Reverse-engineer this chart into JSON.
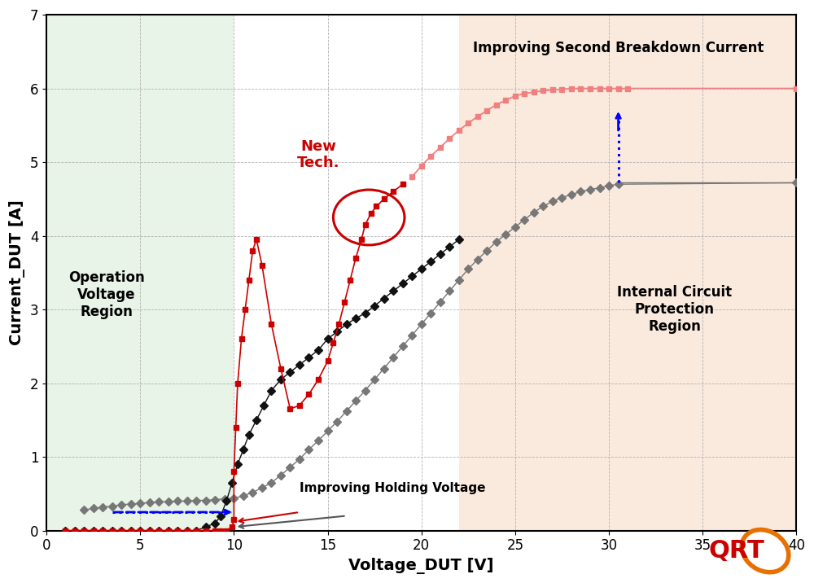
{
  "title": "",
  "xlabel": "Voltage_DUT [V]",
  "ylabel": "Current_DUT [A]",
  "xlim": [
    0,
    40
  ],
  "ylim": [
    0,
    7
  ],
  "xticks": [
    0,
    5,
    10,
    15,
    20,
    25,
    30,
    35,
    40
  ],
  "yticks": [
    0,
    1,
    2,
    3,
    4,
    5,
    6,
    7
  ],
  "bg_color": "#ffffff",
  "green_region": [
    0,
    10
  ],
  "orange_region": [
    22,
    40
  ],
  "green_color": "#e8f4e8",
  "orange_color": "#faeade",
  "red_color": "#cc0000",
  "light_red_color": "#f08080",
  "black_color": "#111111",
  "gray_color": "#777777",
  "dpi": 100,
  "figsize": [
    10.0,
    7.16
  ],
  "red_x": [
    1,
    1.5,
    2,
    2.5,
    3,
    3.5,
    4,
    4.5,
    5,
    5.5,
    6,
    6.5,
    7,
    7.5,
    8,
    8.5,
    9,
    9.3,
    9.6,
    9.9,
    10.0,
    10.0,
    10.1,
    10.2,
    10.4,
    10.6,
    10.8,
    11.0,
    11.2,
    11.5,
    12.0,
    12.5,
    13.0,
    13.5,
    14.0,
    14.5,
    15.0,
    15.3,
    15.6,
    15.9,
    16.2,
    16.5,
    16.8,
    17.0,
    17.3,
    17.6,
    18.0,
    18.5,
    19.0
  ],
  "red_y": [
    0,
    0,
    0,
    0,
    0,
    0,
    0,
    0,
    0,
    0,
    0,
    0,
    0,
    0,
    0,
    0,
    0,
    0,
    0,
    0.05,
    0.15,
    0.8,
    1.4,
    2.0,
    2.6,
    3.0,
    3.4,
    3.8,
    3.95,
    3.6,
    2.8,
    2.2,
    1.65,
    1.7,
    1.85,
    2.05,
    2.3,
    2.55,
    2.8,
    3.1,
    3.4,
    3.7,
    3.95,
    4.15,
    4.3,
    4.4,
    4.5,
    4.6,
    4.7
  ],
  "black_x": [
    1,
    1.5,
    2,
    2.5,
    3,
    3.5,
    4,
    4.5,
    5,
    5.5,
    6,
    6.5,
    7,
    7.5,
    8,
    8.5,
    9,
    9.3,
    9.6,
    9.9,
    10.2,
    10.5,
    10.8,
    11.2,
    11.6,
    12.0,
    12.5,
    13.0,
    13.5,
    14.0,
    14.5,
    15.0,
    15.5,
    16.0,
    16.5,
    17.0,
    17.5,
    18.0,
    18.5,
    19.0,
    19.5,
    20.0,
    20.5,
    21.0,
    21.5,
    22.0
  ],
  "black_y": [
    0,
    0,
    0,
    0,
    0,
    0,
    0,
    0,
    0,
    0,
    0,
    0,
    0,
    0,
    0,
    0.05,
    0.1,
    0.2,
    0.4,
    0.65,
    0.9,
    1.1,
    1.3,
    1.5,
    1.7,
    1.9,
    2.05,
    2.15,
    2.25,
    2.35,
    2.45,
    2.6,
    2.7,
    2.8,
    2.88,
    2.95,
    3.05,
    3.15,
    3.25,
    3.35,
    3.45,
    3.55,
    3.65,
    3.75,
    3.85,
    3.95
  ],
  "gray_x": [
    2,
    2.5,
    3,
    3.5,
    4,
    4.5,
    5,
    5.5,
    6,
    6.5,
    7,
    7.5,
    8,
    8.5,
    9,
    9.5,
    10.0,
    10.5,
    11.0,
    11.5,
    12.0,
    12.5,
    13.0,
    13.5,
    14.0,
    14.5,
    15.0,
    15.5,
    16.0,
    16.5,
    17.0,
    17.5,
    18.0,
    18.5,
    19.0,
    19.5,
    20.0,
    20.5,
    21.0,
    21.5,
    22.0,
    22.5,
    23.0,
    23.5,
    24.0,
    24.5,
    25.0,
    25.5,
    26.0,
    26.5,
    27.0,
    27.5,
    28.0,
    28.5,
    29.0,
    29.5,
    30.0,
    30.5,
    40.0
  ],
  "gray_y": [
    0.28,
    0.3,
    0.32,
    0.33,
    0.35,
    0.36,
    0.37,
    0.38,
    0.39,
    0.39,
    0.4,
    0.4,
    0.41,
    0.41,
    0.42,
    0.43,
    0.44,
    0.47,
    0.52,
    0.58,
    0.65,
    0.75,
    0.86,
    0.97,
    1.1,
    1.22,
    1.35,
    1.48,
    1.62,
    1.76,
    1.9,
    2.05,
    2.2,
    2.35,
    2.5,
    2.65,
    2.8,
    2.95,
    3.1,
    3.25,
    3.4,
    3.55,
    3.68,
    3.8,
    3.92,
    4.02,
    4.12,
    4.22,
    4.32,
    4.4,
    4.47,
    4.52,
    4.56,
    4.6,
    4.63,
    4.65,
    4.68,
    4.7,
    4.72
  ],
  "light_red_x": [
    19.5,
    20.0,
    20.5,
    21.0,
    21.5,
    22.0,
    22.5,
    23.0,
    23.5,
    24.0,
    24.5,
    25.0,
    25.5,
    26.0,
    26.5,
    27.0,
    27.5,
    28.0,
    28.5,
    29.0,
    29.5,
    30.0,
    30.5,
    31.0,
    40.0
  ],
  "light_red_y": [
    4.8,
    4.95,
    5.08,
    5.2,
    5.32,
    5.43,
    5.53,
    5.62,
    5.7,
    5.78,
    5.84,
    5.9,
    5.93,
    5.95,
    5.97,
    5.98,
    5.99,
    6.0,
    6.0,
    6.0,
    6.0,
    6.0,
    6.0,
    6.0,
    6.0
  ]
}
